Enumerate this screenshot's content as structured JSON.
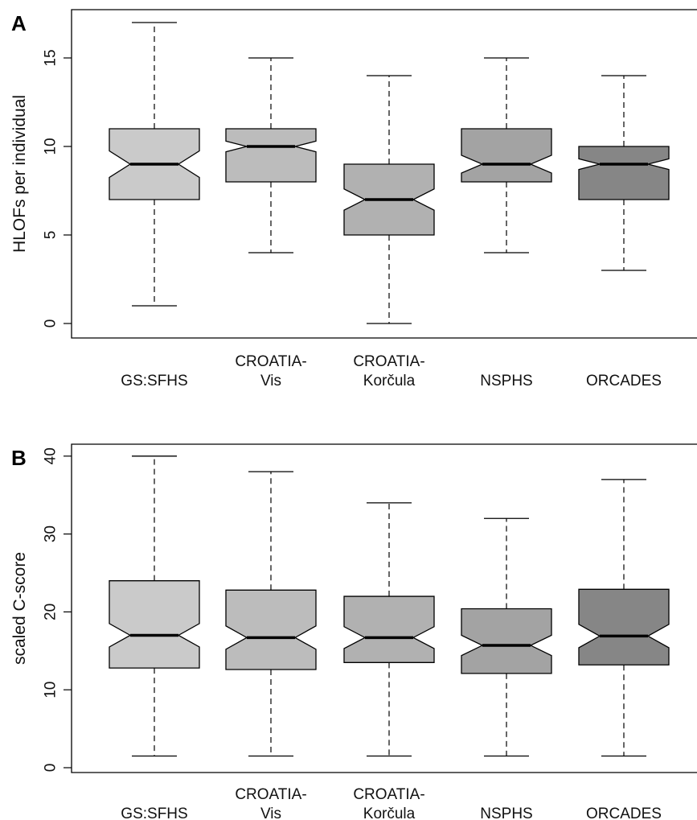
{
  "chart_data": [
    {
      "panel": "A",
      "type": "boxplot",
      "notched": true,
      "ylabel": "HLOFs per individual",
      "ylim": [
        0,
        17
      ],
      "yticks": [
        "0",
        "5",
        "10",
        "15"
      ],
      "categories": [
        [
          "GS:SFHS"
        ],
        [
          "CROATIA-",
          "Vis"
        ],
        [
          "CROATIA-",
          "Korčula"
        ],
        [
          "NSPHS"
        ],
        [
          "ORCADES"
        ]
      ],
      "boxes": [
        {
          "whisker_low": 1,
          "q1": 7,
          "median": 9,
          "q3": 11,
          "whisker_high": 17,
          "notch": [
            8.25,
            9.75
          ],
          "fill": "#cacaca"
        },
        {
          "whisker_low": 4,
          "q1": 8,
          "median": 10,
          "q3": 11,
          "whisker_high": 15,
          "notch": [
            9.7,
            10.3
          ],
          "fill": "#bcbcbc"
        },
        {
          "whisker_low": 0,
          "q1": 5,
          "median": 7,
          "q3": 9,
          "whisker_high": 14,
          "notch": [
            6.4,
            7.6
          ],
          "fill": "#b1b1b1"
        },
        {
          "whisker_low": 4,
          "q1": 8,
          "median": 9,
          "q3": 11,
          "whisker_high": 15,
          "notch": [
            8.5,
            9.5
          ],
          "fill": "#a3a3a3"
        },
        {
          "whisker_low": 3,
          "q1": 7,
          "median": 9,
          "q3": 10,
          "whisker_high": 14,
          "notch": [
            8.7,
            9.3
          ],
          "fill": "#868686"
        }
      ]
    },
    {
      "panel": "B",
      "type": "boxplot",
      "notched": true,
      "ylabel": "scaled C-score",
      "ylim": [
        0,
        41
      ],
      "yticks": [
        "0",
        "10",
        "20",
        "30",
        "40"
      ],
      "categories": [
        [
          "GS:SFHS"
        ],
        [
          "CROATIA-",
          "Vis"
        ],
        [
          "CROATIA-",
          "Korčula"
        ],
        [
          "NSPHS"
        ],
        [
          "ORCADES"
        ]
      ],
      "boxes": [
        {
          "whisker_low": 1.5,
          "q1": 12.8,
          "median": 17.0,
          "q3": 24.0,
          "whisker_high": 40.0,
          "notch": [
            15.5,
            18.5
          ],
          "fill": "#cacaca"
        },
        {
          "whisker_low": 1.5,
          "q1": 12.6,
          "median": 16.7,
          "q3": 22.8,
          "whisker_high": 38.0,
          "notch": [
            15.2,
            18.2
          ],
          "fill": "#bcbcbc"
        },
        {
          "whisker_low": 1.5,
          "q1": 13.5,
          "median": 16.7,
          "q3": 22.0,
          "whisker_high": 34.0,
          "notch": [
            15.3,
            18.1
          ],
          "fill": "#b1b1b1"
        },
        {
          "whisker_low": 1.5,
          "q1": 12.1,
          "median": 15.7,
          "q3": 20.4,
          "whisker_high": 32.0,
          "notch": [
            14.4,
            17.0
          ],
          "fill": "#a3a3a3"
        },
        {
          "whisker_low": 1.5,
          "q1": 13.2,
          "median": 16.9,
          "q3": 22.9,
          "whisker_high": 37.0,
          "notch": [
            15.4,
            18.4
          ],
          "fill": "#868686"
        }
      ]
    }
  ]
}
